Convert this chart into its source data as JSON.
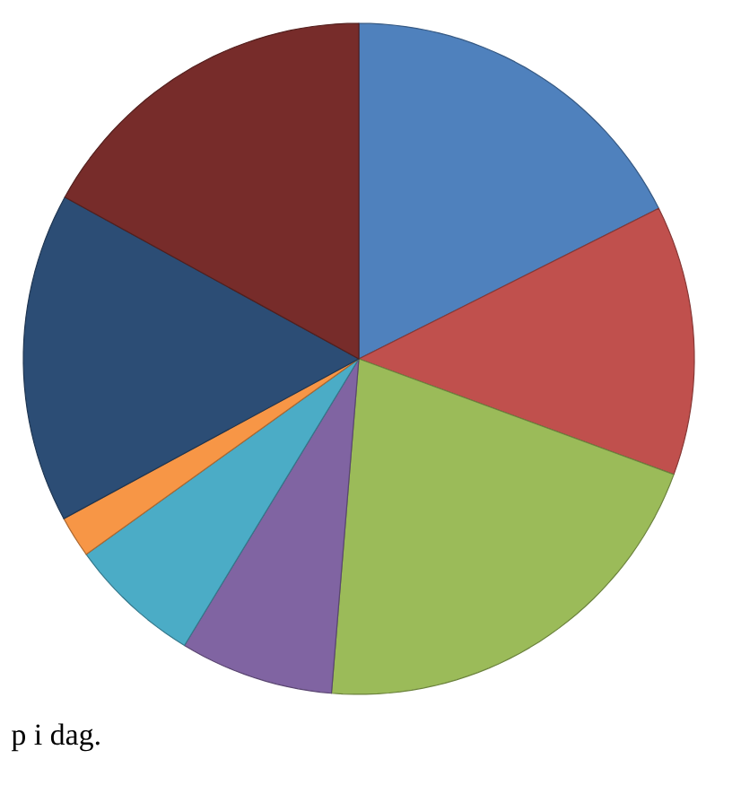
{
  "chart_data": {
    "type": "pie",
    "categories": [
      null,
      null,
      null,
      null,
      null,
      null,
      null,
      null
    ],
    "values": [
      17.6,
      13.0,
      20.7,
      7.4,
      6.4,
      2.0,
      15.9,
      17.0
    ],
    "colors": [
      "#4f81bd",
      "#c0504d",
      "#9bbb59",
      "#8064a2",
      "#4bacc6",
      "#f79646",
      "#2c4d75",
      "#772c2a"
    ],
    "annotations": [
      "p i dag."
    ]
  }
}
